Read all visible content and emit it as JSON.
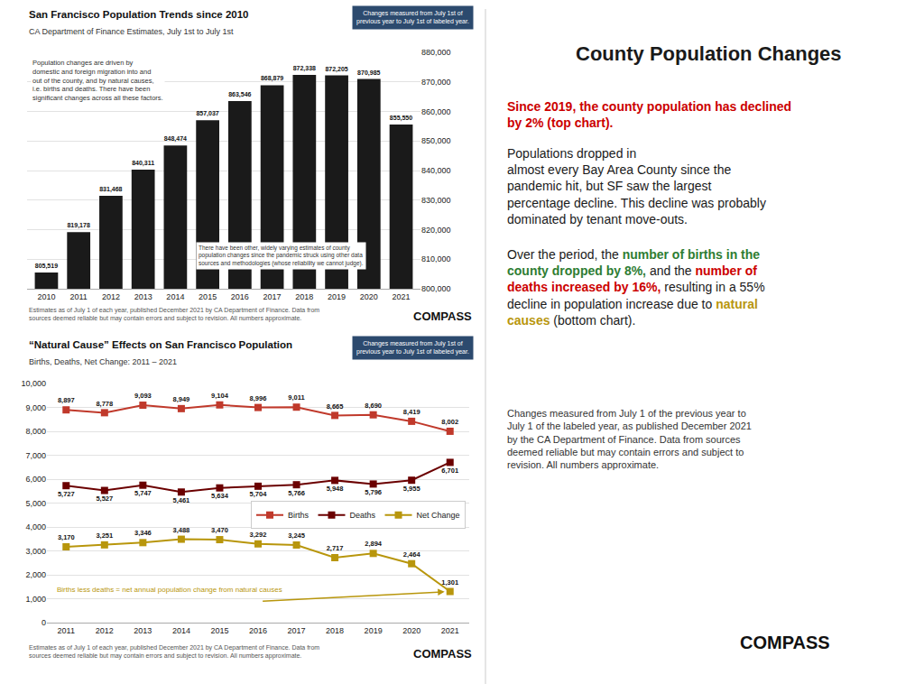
{
  "title": "County Population Changes",
  "annotations": [
    [
      {
        "text": "Since 2019, the county population has declined\nby 2% (top chart).",
        "color": "#cc0000"
      }
    ],
    [
      {
        "text": "Populations dropped in\nalmost every Bay Area County since the\npandemic hit, but SF saw the largest\npercentage decline. "
      },
      {
        "text": "This decline was probably\ndominated by tenant move-outs"
      },
      {
        "text": "."
      }
    ],
    [
      {
        "text": "Over the period, the "
      },
      {
        "text": "number of births in the\ncounty dropped by 8%,",
        "color": "#2e7d32"
      },
      {
        "text": " and the "
      },
      {
        "text": "number of\ndeaths increased by 16%,",
        "color": "#cc0000"
      },
      {
        "text": " resulting in a 55%\ndecline in population increase due to "
      },
      {
        "text": "natural\ncauses",
        "color": "#b8960c"
      },
      {
        "text": " (bottom chart)."
      }
    ]
  ],
  "footer": "Changes measured from July 1 of the previous year to\nJuly 1 of the labeled year, as published December 2021\nby the CA Department of Finance. Data from sources\ndeemed reliable but may contain errors and subject to\nrevision. All numbers approximate.",
  "logo": "COMPASS",
  "chart_data": [
    {
      "type": "bar",
      "title": "San Francisco Population Trends since 2010",
      "subtitle": "CA Department of Finance Estimates, July 1st to July 1st",
      "note": "Changes measured from July 1st of\nprevious year to July 1st of labeled year.",
      "annotations": [
        "Population changes are driven by\ndomestic and foreign migration into and\nout of the county, and by natural causes,\ni.e. births and deaths. There have been\nsignificant changes across all these factors.",
        "There have been other, widely varying estimates of county\npopulation changes since the pandemic struck using other data\nsources and methodologies (whose reliability we cannot judge)."
      ],
      "footer": "Estimates as of July 1 of each year, published December 2021 by CA Department of Finance. Data from\nsources deemed reliable but may contain errors and subject to revision. All numbers approximate.",
      "logo": "COMPASS",
      "categories": [
        "2010",
        "2011",
        "2012",
        "2013",
        "2014",
        "2015",
        "2016",
        "2017",
        "2018",
        "2019",
        "2020",
        "2021"
      ],
      "values": [
        805519,
        819178,
        831468,
        840311,
        848474,
        857037,
        863546,
        868879,
        872338,
        872205,
        870985,
        855550
      ],
      "value_labels": [
        "805,519",
        "819,178",
        "831,468",
        "840,311",
        "848,474",
        "857,037",
        "863,546",
        "868,879",
        "872,338",
        "872,205",
        "870,985",
        "855,550"
      ],
      "color": "#1a1a1a",
      "ylim": [
        800000,
        880000
      ],
      "yticks": [
        {
          "value": 800000,
          "label": "800,000"
        },
        {
          "value": 810000,
          "label": "810,000"
        },
        {
          "value": 820000,
          "label": "820,000"
        },
        {
          "value": 830000,
          "label": "830,000"
        },
        {
          "value": 840000,
          "label": "840,000"
        },
        {
          "value": 850000,
          "label": "850,000"
        },
        {
          "value": 860000,
          "label": "860,000"
        },
        {
          "value": 870000,
          "label": "870,000"
        },
        {
          "value": 880000,
          "label": "880,000"
        }
      ],
      "grid": true,
      "data_labels": true
    },
    {
      "type": "line",
      "title": "“Natural Cause” Effects on San Francisco Population",
      "subtitle": "Births, Deaths, Net Change: 2011 – 2021",
      "note": "Changes measured from July 1st of\nprevious year to July 1st of labeled year.",
      "annotations": [
        "Births less deaths = net annual population change from natural causes"
      ],
      "footer": "Estimates as of July 1 of each year, published December 2021 by CA Department of Finance. Data from\nsources deemed reliable but may contain errors and subject to revision. All numbers approximate.",
      "logo": "COMPASS",
      "categories": [
        "2011",
        "2012",
        "2013",
        "2014",
        "2015",
        "2016",
        "2017",
        "2018",
        "2019",
        "2020",
        "2021"
      ],
      "series": [
        {
          "name": "Births",
          "color": "#c0392b",
          "marker": "square",
          "values": [
            8897,
            8778,
            9093,
            8949,
            9104,
            8996,
            9011,
            8665,
            8690,
            8419,
            8002
          ],
          "value_labels": [
            "8,897",
            "8,778",
            "9,093",
            "8,949",
            "9,104",
            "8,996",
            "9,011",
            "8,665",
            "8,690",
            "8,419",
            "8,002"
          ]
        },
        {
          "name": "Deaths",
          "color": "#6b0000",
          "marker": "square",
          "values": [
            5727,
            5527,
            5747,
            5461,
            5634,
            5704,
            5766,
            5948,
            5796,
            5955,
            6701
          ],
          "value_labels": [
            "5,727",
            "5,527",
            "5,747",
            "5,461",
            "5,634",
            "5,704",
            "5,766",
            "5,948",
            "5,796",
            "5,955",
            "6,701"
          ]
        },
        {
          "name": "Net Change",
          "color": "#b8960c",
          "marker": "square",
          "values": [
            3170,
            3251,
            3346,
            3488,
            3470,
            3292,
            3245,
            2717,
            2894,
            2464,
            1301
          ],
          "value_labels": [
            "3,170",
            "3,251",
            "3,346",
            "3,488",
            "3,470",
            "3,292",
            "3,245",
            "2,717",
            "2,894",
            "2,464",
            "1,301"
          ]
        }
      ],
      "ylim": [
        0,
        10000
      ],
      "yticks": [
        0,
        {
          "value": 1000,
          "label": "1,000"
        },
        {
          "value": 2000,
          "label": "2,000"
        },
        {
          "value": 3000,
          "label": "3,000"
        },
        {
          "value": 4000,
          "label": "4,000"
        },
        {
          "value": 5000,
          "label": "5,000"
        },
        {
          "value": 6000,
          "label": "6,000"
        },
        {
          "value": 7000,
          "label": "7,000"
        },
        {
          "value": 8000,
          "label": "8,000"
        },
        {
          "value": 9000,
          "label": "9,000"
        },
        {
          "value": 10000,
          "label": "10,000"
        }
      ],
      "grid": true,
      "legend": "right",
      "data_labels": true
    }
  ]
}
